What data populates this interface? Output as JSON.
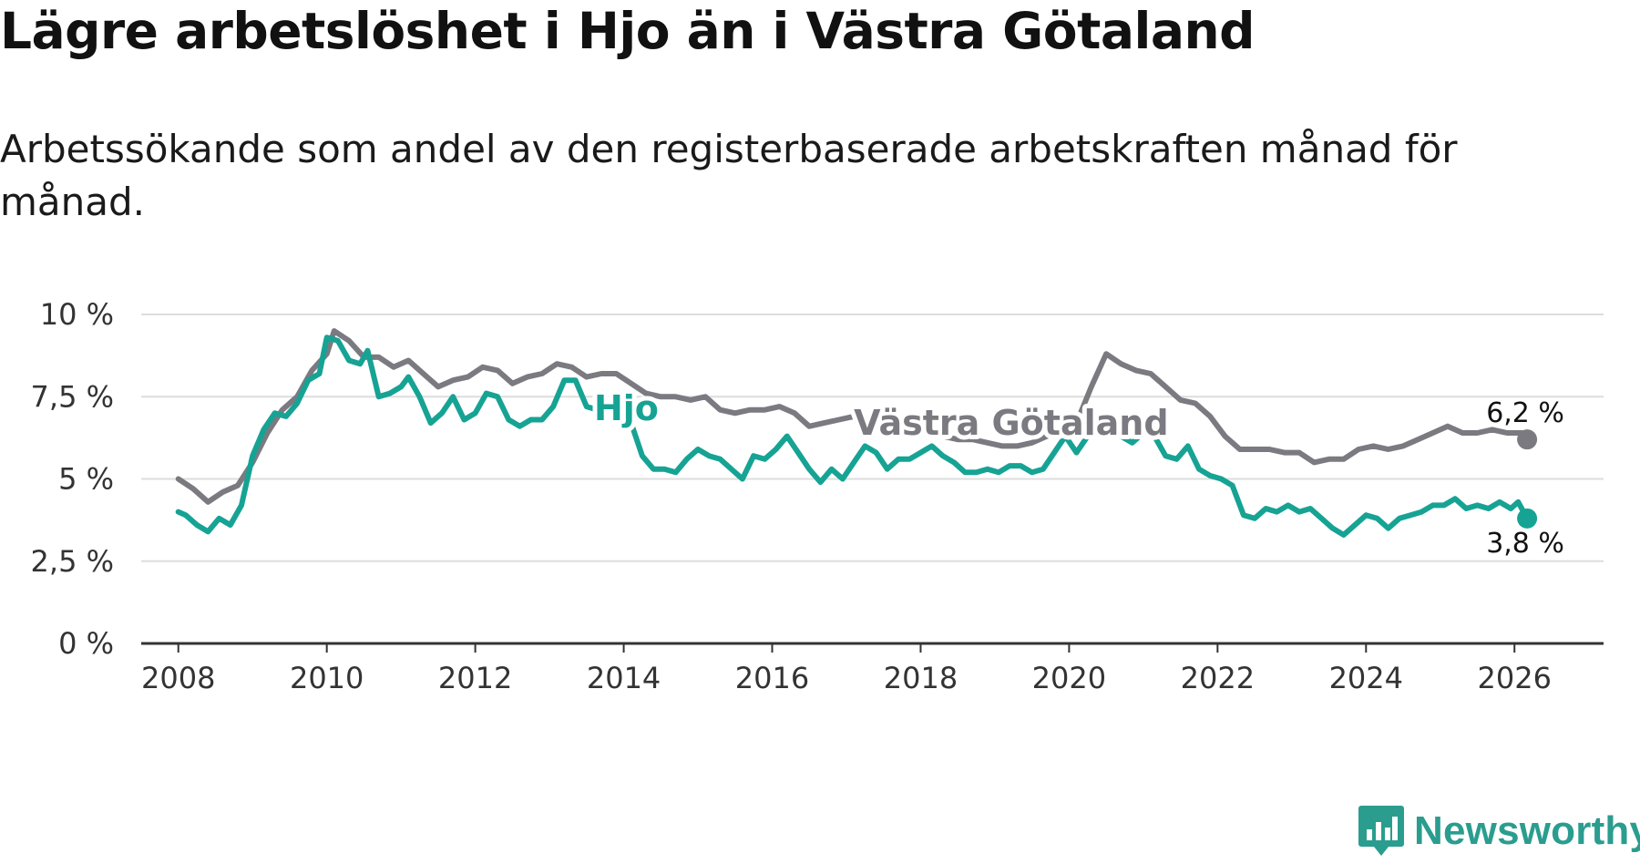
{
  "title": "Lägre arbetslöshet i Hjo än i Västra Götaland",
  "subtitle": "Arbetssökande som andel av den registerbaserade arbetskraften månad för månad.",
  "brand": "Newsworthy",
  "colors": {
    "hjo": "#16a394",
    "region": "#7a7a80",
    "grid": "#dddddd",
    "axis": "#333333",
    "brand": "#2a9d8f"
  },
  "chart_data": {
    "type": "line",
    "title": "Lägre arbetslöshet i Hjo än i Västra Götaland",
    "xlabel": "",
    "ylabel": "",
    "ylim": [
      0,
      10
    ],
    "xlim": [
      2007.5,
      2027.2
    ],
    "y_ticks": [
      0,
      2.5,
      5,
      7.5,
      10
    ],
    "y_tick_labels": [
      "0 %",
      "2,5 %",
      "5 %",
      "7,5 %",
      "10 %"
    ],
    "x_ticks": [
      2008,
      2010,
      2012,
      2014,
      2016,
      2018,
      2020,
      2022,
      2024,
      2026
    ],
    "x_tick_labels": [
      "2008",
      "2010",
      "2012",
      "2014",
      "2016",
      "2018",
      "2020",
      "2022",
      "2024",
      "2026"
    ],
    "grid": true,
    "series": [
      {
        "name": "Västra Götaland",
        "label": "Västra Götaland",
        "end_label": "6,2 %",
        "points": [
          [
            2008.0,
            5.0
          ],
          [
            2008.2,
            4.7
          ],
          [
            2008.4,
            4.3
          ],
          [
            2008.6,
            4.6
          ],
          [
            2008.8,
            4.8
          ],
          [
            2009.0,
            5.5
          ],
          [
            2009.2,
            6.4
          ],
          [
            2009.4,
            7.1
          ],
          [
            2009.6,
            7.5
          ],
          [
            2009.8,
            8.3
          ],
          [
            2010.0,
            8.8
          ],
          [
            2010.1,
            9.5
          ],
          [
            2010.3,
            9.2
          ],
          [
            2010.5,
            8.7
          ],
          [
            2010.7,
            8.7
          ],
          [
            2010.9,
            8.4
          ],
          [
            2011.1,
            8.6
          ],
          [
            2011.3,
            8.2
          ],
          [
            2011.5,
            7.8
          ],
          [
            2011.7,
            8.0
          ],
          [
            2011.9,
            8.1
          ],
          [
            2012.1,
            8.4
          ],
          [
            2012.3,
            8.3
          ],
          [
            2012.5,
            7.9
          ],
          [
            2012.7,
            8.1
          ],
          [
            2012.9,
            8.2
          ],
          [
            2013.1,
            8.5
          ],
          [
            2013.3,
            8.4
          ],
          [
            2013.5,
            8.1
          ],
          [
            2013.7,
            8.2
          ],
          [
            2013.9,
            8.2
          ],
          [
            2014.1,
            7.9
          ],
          [
            2014.3,
            7.6
          ],
          [
            2014.5,
            7.5
          ],
          [
            2014.7,
            7.5
          ],
          [
            2014.9,
            7.4
          ],
          [
            2015.1,
            7.5
          ],
          [
            2015.3,
            7.1
          ],
          [
            2015.5,
            7.0
          ],
          [
            2015.7,
            7.1
          ],
          [
            2015.9,
            7.1
          ],
          [
            2016.1,
            7.2
          ],
          [
            2016.3,
            7.0
          ],
          [
            2016.5,
            6.6
          ],
          [
            2016.7,
            6.7
          ],
          [
            2016.9,
            6.8
          ],
          [
            2017.1,
            6.9
          ],
          [
            2017.3,
            6.7
          ],
          [
            2017.5,
            6.4
          ],
          [
            2017.7,
            6.5
          ],
          [
            2017.9,
            6.5
          ],
          [
            2018.1,
            6.5
          ],
          [
            2018.3,
            6.3
          ],
          [
            2018.5,
            6.2
          ],
          [
            2018.7,
            6.2
          ],
          [
            2018.9,
            6.1
          ],
          [
            2019.1,
            6.0
          ],
          [
            2019.3,
            6.0
          ],
          [
            2019.5,
            6.1
          ],
          [
            2019.7,
            6.3
          ],
          [
            2019.9,
            6.5
          ],
          [
            2020.1,
            6.7
          ],
          [
            2020.3,
            7.8
          ],
          [
            2020.5,
            8.8
          ],
          [
            2020.7,
            8.5
          ],
          [
            2020.9,
            8.3
          ],
          [
            2021.1,
            8.2
          ],
          [
            2021.3,
            7.8
          ],
          [
            2021.5,
            7.4
          ],
          [
            2021.7,
            7.3
          ],
          [
            2021.9,
            6.9
          ],
          [
            2022.1,
            6.3
          ],
          [
            2022.3,
            5.9
          ],
          [
            2022.5,
            5.9
          ],
          [
            2022.7,
            5.9
          ],
          [
            2022.9,
            5.8
          ],
          [
            2023.1,
            5.8
          ],
          [
            2023.3,
            5.5
          ],
          [
            2023.5,
            5.6
          ],
          [
            2023.7,
            5.6
          ],
          [
            2023.9,
            5.9
          ],
          [
            2024.1,
            6.0
          ],
          [
            2024.3,
            5.9
          ],
          [
            2024.5,
            6.0
          ],
          [
            2024.7,
            6.2
          ],
          [
            2024.9,
            6.4
          ],
          [
            2025.1,
            6.6
          ],
          [
            2025.3,
            6.4
          ],
          [
            2025.5,
            6.4
          ],
          [
            2025.7,
            6.5
          ],
          [
            2025.9,
            6.4
          ],
          [
            2026.1,
            6.4
          ],
          [
            2026.17,
            6.2
          ]
        ]
      },
      {
        "name": "Hjo",
        "label": "Hjo",
        "end_label": "3,8 %",
        "points": [
          [
            2008.0,
            4.0
          ],
          [
            2008.1,
            3.9
          ],
          [
            2008.25,
            3.6
          ],
          [
            2008.4,
            3.4
          ],
          [
            2008.55,
            3.8
          ],
          [
            2008.7,
            3.6
          ],
          [
            2008.85,
            4.2
          ],
          [
            2009.0,
            5.7
          ],
          [
            2009.15,
            6.5
          ],
          [
            2009.3,
            7.0
          ],
          [
            2009.45,
            6.9
          ],
          [
            2009.6,
            7.3
          ],
          [
            2009.75,
            8.0
          ],
          [
            2009.9,
            8.2
          ],
          [
            2010.0,
            9.3
          ],
          [
            2010.15,
            9.2
          ],
          [
            2010.3,
            8.6
          ],
          [
            2010.45,
            8.5
          ],
          [
            2010.55,
            8.9
          ],
          [
            2010.7,
            7.5
          ],
          [
            2010.85,
            7.6
          ],
          [
            2011.0,
            7.8
          ],
          [
            2011.1,
            8.1
          ],
          [
            2011.25,
            7.5
          ],
          [
            2011.4,
            6.7
          ],
          [
            2011.55,
            7.0
          ],
          [
            2011.7,
            7.5
          ],
          [
            2011.85,
            6.8
          ],
          [
            2012.0,
            7.0
          ],
          [
            2012.15,
            7.6
          ],
          [
            2012.3,
            7.5
          ],
          [
            2012.45,
            6.8
          ],
          [
            2012.6,
            6.6
          ],
          [
            2012.75,
            6.8
          ],
          [
            2012.9,
            6.8
          ],
          [
            2013.05,
            7.2
          ],
          [
            2013.2,
            8.0
          ],
          [
            2013.35,
            8.0
          ],
          [
            2013.5,
            7.2
          ],
          [
            2013.65,
            7.1
          ],
          [
            2013.8,
            7.1
          ],
          [
            2013.95,
            7.0
          ],
          [
            2014.1,
            6.7
          ],
          [
            2014.25,
            5.7
          ],
          [
            2014.4,
            5.3
          ],
          [
            2014.55,
            5.3
          ],
          [
            2014.7,
            5.2
          ],
          [
            2014.85,
            5.6
          ],
          [
            2015.0,
            5.9
          ],
          [
            2015.15,
            5.7
          ],
          [
            2015.3,
            5.6
          ],
          [
            2015.45,
            5.3
          ],
          [
            2015.6,
            5.0
          ],
          [
            2015.75,
            5.7
          ],
          [
            2015.9,
            5.6
          ],
          [
            2016.05,
            5.9
          ],
          [
            2016.2,
            6.3
          ],
          [
            2016.35,
            5.8
          ],
          [
            2016.5,
            5.3
          ],
          [
            2016.65,
            4.9
          ],
          [
            2016.8,
            5.3
          ],
          [
            2016.95,
            5.0
          ],
          [
            2017.1,
            5.5
          ],
          [
            2017.25,
            6.0
          ],
          [
            2017.4,
            5.8
          ],
          [
            2017.55,
            5.3
          ],
          [
            2017.7,
            5.6
          ],
          [
            2017.85,
            5.6
          ],
          [
            2018.0,
            5.8
          ],
          [
            2018.15,
            6.0
          ],
          [
            2018.3,
            5.7
          ],
          [
            2018.45,
            5.5
          ],
          [
            2018.6,
            5.2
          ],
          [
            2018.75,
            5.2
          ],
          [
            2018.9,
            5.3
          ],
          [
            2019.05,
            5.2
          ],
          [
            2019.2,
            5.4
          ],
          [
            2019.35,
            5.4
          ],
          [
            2019.5,
            5.2
          ],
          [
            2019.65,
            5.3
          ],
          [
            2019.8,
            5.8
          ],
          [
            2019.95,
            6.3
          ],
          [
            2020.1,
            5.8
          ],
          [
            2020.25,
            6.3
          ],
          [
            2020.4,
            6.5
          ],
          [
            2020.55,
            6.8
          ],
          [
            2020.7,
            6.3
          ],
          [
            2020.85,
            6.1
          ],
          [
            2021.0,
            6.4
          ],
          [
            2021.15,
            6.3
          ],
          [
            2021.3,
            5.7
          ],
          [
            2021.45,
            5.6
          ],
          [
            2021.6,
            6.0
          ],
          [
            2021.75,
            5.3
          ],
          [
            2021.9,
            5.1
          ],
          [
            2022.05,
            5.0
          ],
          [
            2022.2,
            4.8
          ],
          [
            2022.35,
            3.9
          ],
          [
            2022.5,
            3.8
          ],
          [
            2022.65,
            4.1
          ],
          [
            2022.8,
            4.0
          ],
          [
            2022.95,
            4.2
          ],
          [
            2023.1,
            4.0
          ],
          [
            2023.25,
            4.1
          ],
          [
            2023.4,
            3.8
          ],
          [
            2023.55,
            3.5
          ],
          [
            2023.7,
            3.3
          ],
          [
            2023.85,
            3.6
          ],
          [
            2024.0,
            3.9
          ],
          [
            2024.15,
            3.8
          ],
          [
            2024.3,
            3.5
          ],
          [
            2024.45,
            3.8
          ],
          [
            2024.6,
            3.9
          ],
          [
            2024.75,
            4.0
          ],
          [
            2024.9,
            4.2
          ],
          [
            2025.05,
            4.2
          ],
          [
            2025.2,
            4.4
          ],
          [
            2025.35,
            4.1
          ],
          [
            2025.5,
            4.2
          ],
          [
            2025.65,
            4.1
          ],
          [
            2025.8,
            4.3
          ],
          [
            2025.95,
            4.1
          ],
          [
            2026.05,
            4.3
          ],
          [
            2026.17,
            3.8
          ]
        ]
      }
    ]
  }
}
